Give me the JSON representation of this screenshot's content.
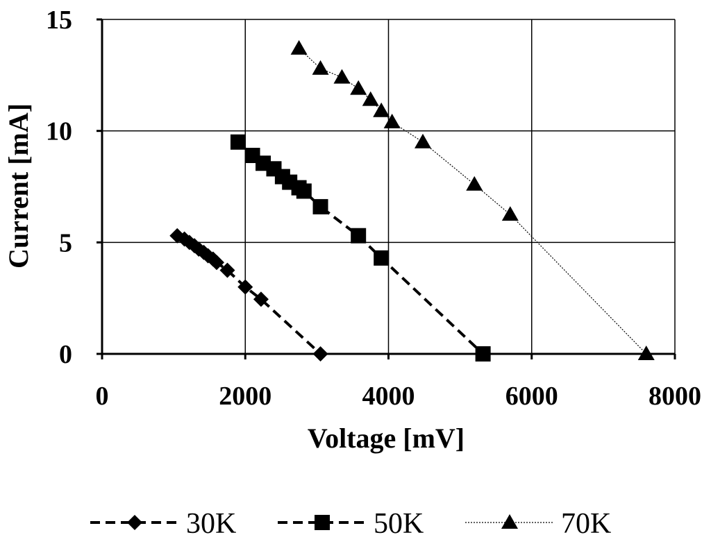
{
  "chart_data": {
    "type": "scatter",
    "xlabel": "Voltage [mV]",
    "ylabel": "Current [mA]",
    "xlim": [
      0,
      8000
    ],
    "ylim": [
      0,
      15
    ],
    "xticks": [
      0,
      2000,
      4000,
      6000,
      8000
    ],
    "yticks": [
      0,
      5,
      10,
      15
    ],
    "grid": true,
    "legend_position": "bottom",
    "series": [
      {
        "name": "30K",
        "marker": "diamond",
        "line": "dashed-thick",
        "points": [
          [
            1050,
            5.3
          ],
          [
            1150,
            5.15
          ],
          [
            1220,
            5.0
          ],
          [
            1290,
            4.85
          ],
          [
            1350,
            4.7
          ],
          [
            1420,
            4.55
          ],
          [
            1480,
            4.4
          ],
          [
            1550,
            4.25
          ],
          [
            1600,
            4.1
          ],
          [
            1750,
            3.75
          ],
          [
            2000,
            3.0
          ],
          [
            2220,
            2.45
          ],
          [
            3050,
            0.0
          ]
        ]
      },
      {
        "name": "50K",
        "marker": "square",
        "line": "dashed-thick",
        "points": [
          [
            1900,
            9.5
          ],
          [
            2100,
            8.9
          ],
          [
            2250,
            8.55
          ],
          [
            2400,
            8.3
          ],
          [
            2520,
            7.95
          ],
          [
            2620,
            7.7
          ],
          [
            2750,
            7.45
          ],
          [
            2820,
            7.3
          ],
          [
            3050,
            6.6
          ],
          [
            3580,
            5.3
          ],
          [
            3900,
            4.3
          ],
          [
            5320,
            0.0
          ]
        ]
      },
      {
        "name": "70K",
        "marker": "triangle",
        "line": "dotted-thin",
        "points": [
          [
            2750,
            13.7
          ],
          [
            3050,
            12.8
          ],
          [
            3350,
            12.4
          ],
          [
            3580,
            11.9
          ],
          [
            3750,
            11.4
          ],
          [
            3900,
            10.9
          ],
          [
            4050,
            10.4
          ],
          [
            4480,
            9.5
          ],
          [
            5200,
            7.6
          ],
          [
            5700,
            6.25
          ],
          [
            7600,
            0.0
          ]
        ]
      }
    ]
  }
}
